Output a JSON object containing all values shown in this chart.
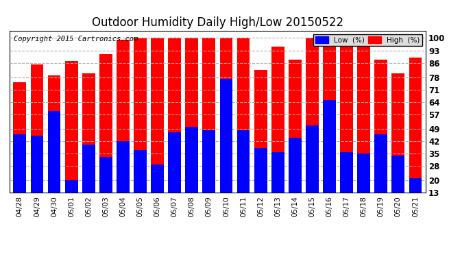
{
  "title": "Outdoor Humidity Daily High/Low 20150522",
  "copyright": "Copyright 2015 Cartronics.com",
  "categories": [
    "04/28",
    "04/29",
    "04/30",
    "05/01",
    "05/02",
    "05/03",
    "05/04",
    "05/05",
    "05/06",
    "05/07",
    "05/08",
    "05/09",
    "05/10",
    "05/11",
    "05/12",
    "05/13",
    "05/14",
    "05/15",
    "05/16",
    "05/17",
    "05/18",
    "05/19",
    "05/20",
    "05/21"
  ],
  "high": [
    75,
    85,
    79,
    87,
    80,
    91,
    99,
    100,
    100,
    100,
    100,
    100,
    100,
    100,
    82,
    95,
    88,
    100,
    100,
    100,
    100,
    88,
    80,
    89
  ],
  "low": [
    46,
    45,
    59,
    20,
    40,
    33,
    42,
    37,
    29,
    47,
    50,
    48,
    77,
    48,
    38,
    36,
    44,
    51,
    65,
    36,
    35,
    46,
    34,
    21
  ],
  "high_color": "#ff0000",
  "low_color": "#0000ff",
  "bg_color": "#ffffff",
  "grid_color": "#b0b0b0",
  "title_fontsize": 12,
  "copyright_fontsize": 7.5,
  "ylabel_ticks": [
    13,
    20,
    28,
    35,
    42,
    49,
    57,
    64,
    71,
    78,
    86,
    93,
    100
  ],
  "ymin": 13,
  "ymax": 104,
  "bar_width": 0.75
}
